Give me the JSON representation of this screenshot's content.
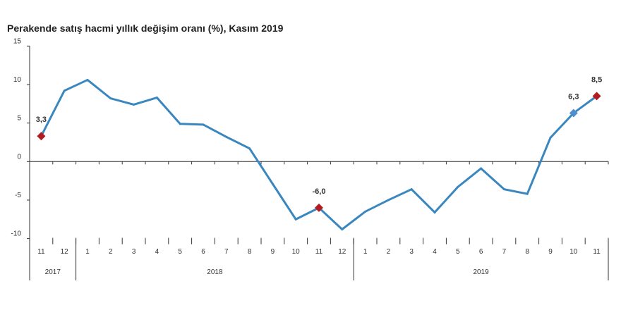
{
  "chart_data": {
    "type": "line",
    "title": "Perakende satış hacmi yıllık değişim oranı (%), Kasım 2019",
    "xlabel": "",
    "ylabel": "",
    "ylim": [
      -10,
      15
    ],
    "yticks": [
      "15",
      "10",
      "5",
      "0",
      "-5",
      "-10"
    ],
    "ytick_values": [
      15,
      10,
      5,
      0,
      -5,
      -10
    ],
    "categories": [
      "11",
      "12",
      "1",
      "2",
      "3",
      "4",
      "5",
      "6",
      "7",
      "8",
      "9",
      "10",
      "11",
      "12",
      "1",
      "2",
      "3",
      "4",
      "5",
      "6",
      "7",
      "8",
      "9",
      "10",
      "11"
    ],
    "years": [
      {
        "label": "2017",
        "count": 2
      },
      {
        "label": "2018",
        "count": 12
      },
      {
        "label": "2019",
        "count": 11
      }
    ],
    "series": [
      {
        "values": [
          3.3,
          9.2,
          10.6,
          8.2,
          7.4,
          8.3,
          4.9,
          4.8,
          3.2,
          1.7,
          -2.9,
          -7.5,
          -6.0,
          -8.8,
          -6.5,
          -5.0,
          -3.6,
          -6.6,
          -3.3,
          -0.9,
          -3.6,
          -4.2,
          3.1,
          6.3,
          8.5
        ],
        "color": "#3a87c0"
      }
    ],
    "highlights": [
      {
        "index": 0,
        "label": "3,3",
        "color": "#b01c22"
      },
      {
        "index": 12,
        "label": "-6,0",
        "color": "#b01c22"
      },
      {
        "index": 23,
        "label": "6,3",
        "color": "#4f8fd0"
      },
      {
        "index": 24,
        "label": "8,5",
        "color": "#b01c22"
      }
    ],
    "grid": false,
    "legend": "none"
  }
}
